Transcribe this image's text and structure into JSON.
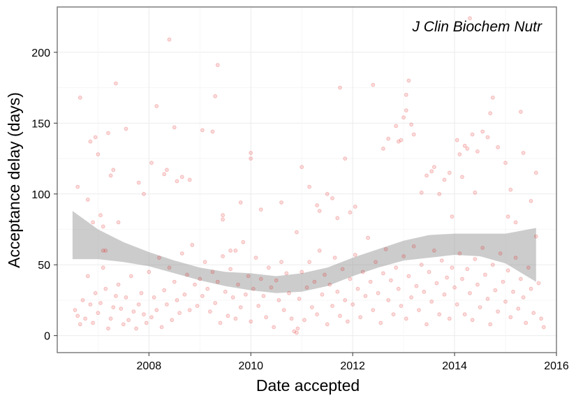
{
  "chart_data": {
    "type": "scatter",
    "title": "",
    "annotation": "J Clin Biochem Nutr",
    "xlabel": "Date accepted",
    "ylabel": "Acceptance delay (days)",
    "x_unit": "year",
    "xlim": [
      2006.2,
      2016.0
    ],
    "ylim": [
      -12,
      232
    ],
    "x_ticks": [
      2008,
      2010,
      2012,
      2014,
      2016
    ],
    "x_tick_labels": [
      "2008",
      "2010",
      "2012",
      "2014",
      "2016"
    ],
    "y_ticks": [
      0,
      50,
      100,
      150,
      200
    ],
    "y_tick_labels": [
      "0",
      "50",
      "100",
      "150",
      "200"
    ],
    "grid": true,
    "legend": "none",
    "point_color": "#e41a1c",
    "point_opacity": 0.25,
    "band_color": "#999999",
    "points": [
      [
        2006.6,
        105
      ],
      [
        2006.65,
        168
      ],
      [
        2006.8,
        96
      ],
      [
        2006.85,
        137
      ],
      [
        2006.9,
        80
      ],
      [
        2006.95,
        140
      ],
      [
        2007.0,
        128
      ],
      [
        2007.05,
        85
      ],
      [
        2007.1,
        77
      ],
      [
        2007.1,
        60
      ],
      [
        2007.15,
        60
      ],
      [
        2007.2,
        143
      ],
      [
        2007.25,
        113
      ],
      [
        2007.3,
        117
      ],
      [
        2007.35,
        178
      ],
      [
        2007.4,
        80
      ],
      [
        2007.55,
        146
      ],
      [
        2007.8,
        108
      ],
      [
        2007.9,
        100
      ],
      [
        2008.05,
        122
      ],
      [
        2008.15,
        162
      ],
      [
        2008.3,
        114
      ],
      [
        2008.35,
        117
      ],
      [
        2008.4,
        209
      ],
      [
        2008.5,
        147
      ],
      [
        2008.55,
        109
      ],
      [
        2008.65,
        112
      ],
      [
        2008.8,
        110
      ],
      [
        2009.05,
        145
      ],
      [
        2009.25,
        144
      ],
      [
        2009.3,
        169
      ],
      [
        2009.35,
        191
      ],
      [
        2009.45,
        85
      ],
      [
        2009.45,
        82
      ],
      [
        2009.6,
        60
      ],
      [
        2009.7,
        60
      ],
      [
        2009.8,
        94
      ],
      [
        2010.0,
        129
      ],
      [
        2010.0,
        125
      ],
      [
        2010.2,
        89
      ],
      [
        2010.6,
        94
      ],
      [
        2010.9,
        73
      ],
      [
        2011.0,
        119
      ],
      [
        2011.15,
        105
      ],
      [
        2011.3,
        92
      ],
      [
        2011.35,
        88
      ],
      [
        2011.5,
        100
      ],
      [
        2011.6,
        97
      ],
      [
        2011.7,
        83
      ],
      [
        2011.75,
        175
      ],
      [
        2011.85,
        125
      ],
      [
        2011.95,
        87
      ],
      [
        2012.05,
        91
      ],
      [
        2012.4,
        177
      ],
      [
        2012.6,
        132
      ],
      [
        2012.7,
        139
      ],
      [
        2012.85,
        148
      ],
      [
        2012.9,
        137
      ],
      [
        2012.95,
        138
      ],
      [
        2013.0,
        154
      ],
      [
        2013.05,
        159
      ],
      [
        2013.05,
        170
      ],
      [
        2013.1,
        180
      ],
      [
        2013.15,
        149
      ],
      [
        2013.2,
        142
      ],
      [
        2013.35,
        101
      ],
      [
        2013.45,
        113
      ],
      [
        2013.55,
        116
      ],
      [
        2013.6,
        119
      ],
      [
        2013.7,
        100
      ],
      [
        2013.8,
        110
      ],
      [
        2013.9,
        115
      ],
      [
        2013.95,
        84
      ],
      [
        2014.05,
        138
      ],
      [
        2014.1,
        128
      ],
      [
        2014.15,
        112
      ],
      [
        2014.2,
        134
      ],
      [
        2014.25,
        132
      ],
      [
        2014.3,
        224
      ],
      [
        2014.35,
        142
      ],
      [
        2014.4,
        101
      ],
      [
        2014.45,
        130
      ],
      [
        2014.55,
        144
      ],
      [
        2014.65,
        140
      ],
      [
        2014.7,
        157
      ],
      [
        2014.75,
        168
      ],
      [
        2014.85,
        133
      ],
      [
        2015.0,
        122
      ],
      [
        2015.05,
        84
      ],
      [
        2015.1,
        103
      ],
      [
        2015.2,
        80
      ],
      [
        2015.3,
        158
      ],
      [
        2015.35,
        129
      ],
      [
        2015.5,
        95
      ],
      [
        2015.6,
        115
      ],
      [
        2006.55,
        18
      ],
      [
        2006.6,
        14
      ],
      [
        2006.65,
        8
      ],
      [
        2006.7,
        25
      ],
      [
        2006.75,
        12
      ],
      [
        2006.8,
        42
      ],
      [
        2006.85,
        22
      ],
      [
        2006.9,
        9
      ],
      [
        2006.95,
        30
      ],
      [
        2007.0,
        16
      ],
      [
        2007.05,
        23
      ],
      [
        2007.1,
        48
      ],
      [
        2007.15,
        33
      ],
      [
        2007.2,
        5
      ],
      [
        2007.25,
        12
      ],
      [
        2007.3,
        20
      ],
      [
        2007.35,
        28
      ],
      [
        2007.4,
        36
      ],
      [
        2007.45,
        19
      ],
      [
        2007.5,
        8
      ],
      [
        2007.55,
        27
      ],
      [
        2007.6,
        11
      ],
      [
        2007.65,
        42
      ],
      [
        2007.7,
        17
      ],
      [
        2007.75,
        5
      ],
      [
        2007.8,
        22
      ],
      [
        2007.85,
        30
      ],
      [
        2007.9,
        15
      ],
      [
        2007.95,
        9
      ],
      [
        2008.0,
        45
      ],
      [
        2008.05,
        13
      ],
      [
        2008.1,
        27
      ],
      [
        2008.15,
        18
      ],
      [
        2008.2,
        55
      ],
      [
        2008.25,
        6
      ],
      [
        2008.3,
        32
      ],
      [
        2008.35,
        22
      ],
      [
        2008.4,
        48
      ],
      [
        2008.45,
        11
      ],
      [
        2008.5,
        38
      ],
      [
        2008.55,
        25
      ],
      [
        2008.6,
        16
      ],
      [
        2008.65,
        58
      ],
      [
        2008.7,
        29
      ],
      [
        2008.75,
        43
      ],
      [
        2008.8,
        18
      ],
      [
        2008.85,
        64
      ],
      [
        2008.9,
        36
      ],
      [
        2008.95,
        21
      ],
      [
        2009.0,
        40
      ],
      [
        2009.05,
        28
      ],
      [
        2009.1,
        52
      ],
      [
        2009.15,
        33
      ],
      [
        2009.2,
        17
      ],
      [
        2009.25,
        45
      ],
      [
        2009.3,
        23
      ],
      [
        2009.35,
        38
      ],
      [
        2009.4,
        9
      ],
      [
        2009.45,
        56
      ],
      [
        2009.5,
        31
      ],
      [
        2009.55,
        14
      ],
      [
        2009.6,
        47
      ],
      [
        2009.65,
        27
      ],
      [
        2009.7,
        12
      ],
      [
        2009.75,
        36
      ],
      [
        2009.8,
        20
      ],
      [
        2009.85,
        66
      ],
      [
        2009.9,
        29
      ],
      [
        2009.95,
        42
      ],
      [
        2010.0,
        10
      ],
      [
        2010.05,
        33
      ],
      [
        2010.1,
        55
      ],
      [
        2010.15,
        21
      ],
      [
        2010.2,
        40
      ],
      [
        2010.25,
        28
      ],
      [
        2010.3,
        13
      ],
      [
        2010.35,
        48
      ],
      [
        2010.4,
        34
      ],
      [
        2010.45,
        6
      ],
      [
        2010.5,
        39
      ],
      [
        2010.55,
        25
      ],
      [
        2010.6,
        52
      ],
      [
        2010.65,
        18
      ],
      [
        2010.7,
        44
      ],
      [
        2010.75,
        30
      ],
      [
        2010.8,
        12
      ],
      [
        2010.85,
        3
      ],
      [
        2010.9,
        2
      ],
      [
        2010.92,
        5
      ],
      [
        2010.95,
        26
      ],
      [
        2011.0,
        45
      ],
      [
        2011.05,
        11
      ],
      [
        2011.1,
        34
      ],
      [
        2011.15,
        52
      ],
      [
        2011.2,
        20
      ],
      [
        2011.25,
        38
      ],
      [
        2011.3,
        15
      ],
      [
        2011.35,
        60
      ],
      [
        2011.4,
        29
      ],
      [
        2011.45,
        43
      ],
      [
        2011.5,
        8
      ],
      [
        2011.55,
        36
      ],
      [
        2011.6,
        21
      ],
      [
        2011.65,
        55
      ],
      [
        2011.7,
        31
      ],
      [
        2011.75,
        14
      ],
      [
        2011.8,
        47
      ],
      [
        2011.85,
        25
      ],
      [
        2011.9,
        10
      ],
      [
        2011.95,
        40
      ],
      [
        2012.0,
        22
      ],
      [
        2012.05,
        57
      ],
      [
        2012.1,
        33
      ],
      [
        2012.15,
        13
      ],
      [
        2012.2,
        45
      ],
      [
        2012.25,
        28
      ],
      [
        2012.3,
        69
      ],
      [
        2012.35,
        38
      ],
      [
        2012.4,
        18
      ],
      [
        2012.45,
        52
      ],
      [
        2012.5,
        30
      ],
      [
        2012.55,
        9
      ],
      [
        2012.6,
        44
      ],
      [
        2012.65,
        61
      ],
      [
        2012.7,
        25
      ],
      [
        2012.75,
        39
      ],
      [
        2012.8,
        15
      ],
      [
        2012.85,
        48
      ],
      [
        2012.9,
        33
      ],
      [
        2012.95,
        21
      ],
      [
        2013.0,
        56
      ],
      [
        2013.05,
        12
      ],
      [
        2013.1,
        42
      ],
      [
        2013.15,
        27
      ],
      [
        2013.2,
        63
      ],
      [
        2013.25,
        35
      ],
      [
        2013.3,
        18
      ],
      [
        2013.35,
        50
      ],
      [
        2013.4,
        31
      ],
      [
        2013.45,
        8
      ],
      [
        2013.5,
        45
      ],
      [
        2013.55,
        24
      ],
      [
        2013.6,
        60
      ],
      [
        2013.65,
        37
      ],
      [
        2013.7,
        15
      ],
      [
        2013.75,
        53
      ],
      [
        2013.8,
        29
      ],
      [
        2013.85,
        41
      ],
      [
        2013.9,
        12
      ],
      [
        2013.95,
        48
      ],
      [
        2014.0,
        34
      ],
      [
        2014.05,
        22
      ],
      [
        2014.1,
        58
      ],
      [
        2014.15,
        40
      ],
      [
        2014.2,
        15
      ],
      [
        2014.25,
        47
      ],
      [
        2014.3,
        30
      ],
      [
        2014.35,
        11
      ],
      [
        2014.4,
        54
      ],
      [
        2014.45,
        36
      ],
      [
        2014.5,
        20
      ],
      [
        2014.55,
        62
      ],
      [
        2014.6,
        43
      ],
      [
        2014.65,
        26
      ],
      [
        2014.7,
        8
      ],
      [
        2014.75,
        50
      ],
      [
        2014.8,
        32
      ],
      [
        2014.85,
        17
      ],
      [
        2014.9,
        58
      ],
      [
        2014.95,
        38
      ],
      [
        2015.0,
        24
      ],
      [
        2015.05,
        46
      ],
      [
        2015.1,
        13
      ],
      [
        2015.15,
        31
      ],
      [
        2015.2,
        55
      ],
      [
        2015.25,
        19
      ],
      [
        2015.3,
        40
      ],
      [
        2015.35,
        27
      ],
      [
        2015.4,
        9
      ],
      [
        2015.45,
        48
      ],
      [
        2015.5,
        33
      ],
      [
        2015.55,
        16
      ],
      [
        2015.6,
        70
      ],
      [
        2015.65,
        37
      ],
      [
        2015.7,
        12
      ],
      [
        2015.75,
        6
      ]
    ],
    "smooth_band": {
      "x": [
        2006.5,
        2007.0,
        2007.5,
        2008.0,
        2008.5,
        2009.0,
        2009.5,
        2010.0,
        2010.5,
        2011.0,
        2011.5,
        2012.0,
        2012.5,
        2013.0,
        2013.5,
        2014.0,
        2014.5,
        2015.0,
        2015.6
      ],
      "lower": [
        54,
        54,
        52,
        49,
        44,
        39,
        35,
        32,
        30,
        31,
        35,
        42,
        48,
        53,
        55,
        57,
        56,
        51,
        38
      ],
      "upper": [
        88,
        75,
        66,
        59,
        53,
        48,
        45,
        44,
        42,
        44,
        48,
        55,
        61,
        67,
        71,
        72,
        72,
        72,
        76
      ]
    }
  }
}
